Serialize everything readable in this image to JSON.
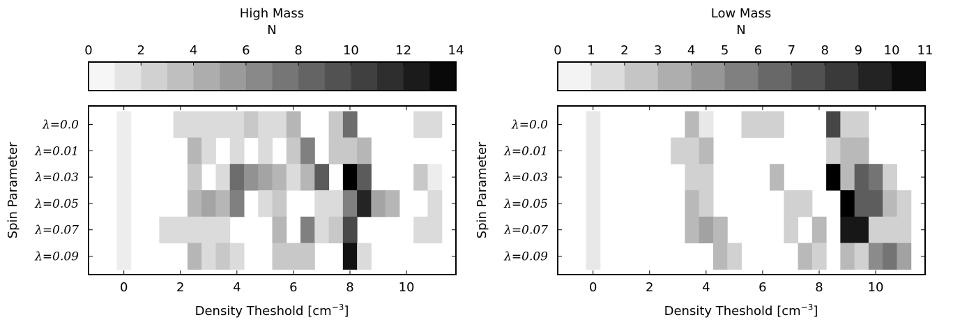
{
  "chart_data": [
    {
      "type": "heatmap",
      "title": "High Mass",
      "colorbar": {
        "label": "N",
        "min": 0,
        "max": 14,
        "levels": 14,
        "ticks": [
          0,
          2,
          4,
          6,
          8,
          10,
          12,
          14
        ],
        "tick_labels": [
          "0",
          "2",
          "4",
          "6",
          "8",
          "10",
          "12",
          "14"
        ]
      },
      "xlabel": "Density Theshold [cm",
      "xlabel_exponent": "−3",
      "xlabel_tail": "]",
      "ylabel": "Spin Parameter",
      "xlim": [
        -1.25,
        11.75
      ],
      "xticks": [
        0,
        2,
        4,
        6,
        8,
        10
      ],
      "xtick_labels": [
        "0",
        "2",
        "4",
        "6",
        "8",
        "10"
      ],
      "x": [
        0,
        0.5,
        1,
        1.5,
        2,
        2.5,
        3,
        3.5,
        4,
        4.5,
        5,
        5.5,
        6,
        6.5,
        7,
        7.5,
        8,
        8.5,
        9,
        9.5,
        10,
        10.5,
        11
      ],
      "y_labels": [
        "λ=0.0",
        "λ=0.01",
        "λ=0.03",
        "λ=0.05",
        "λ=0.07",
        "λ=0.09"
      ],
      "z": [
        [
          1,
          0,
          0,
          0,
          2,
          2,
          2,
          2,
          2,
          3,
          2,
          2,
          4,
          0,
          0,
          3,
          8,
          0,
          0,
          0,
          0,
          2,
          2
        ],
        [
          1,
          0,
          0,
          0,
          0,
          4,
          2,
          0,
          2,
          0,
          2,
          0,
          3,
          7,
          0,
          3,
          3,
          4,
          0,
          0,
          0,
          0,
          0
        ],
        [
          1,
          0,
          0,
          0,
          0,
          3,
          0,
          2,
          8,
          6,
          5,
          4,
          2,
          4,
          9,
          0,
          14,
          9,
          0,
          0,
          0,
          3,
          1
        ],
        [
          1,
          0,
          0,
          0,
          0,
          4,
          5,
          4,
          7,
          0,
          2,
          3,
          0,
          0,
          2,
          2,
          7,
          12,
          5,
          4,
          0,
          0,
          2
        ],
        [
          1,
          0,
          0,
          2,
          2,
          2,
          2,
          2,
          0,
          0,
          0,
          4,
          0,
          7,
          2,
          3,
          10,
          0,
          0,
          0,
          0,
          2,
          2
        ],
        [
          1,
          0,
          0,
          0,
          0,
          4,
          2,
          3,
          2,
          0,
          0,
          3,
          3,
          3,
          0,
          0,
          13,
          2,
          0,
          0,
          0,
          0,
          0
        ]
      ]
    },
    {
      "type": "heatmap",
      "title": "Low Mass",
      "colorbar": {
        "label": "N",
        "min": 0,
        "max": 11,
        "levels": 11,
        "ticks": [
          0,
          1,
          2,
          3,
          4,
          5,
          6,
          7,
          8,
          9,
          10,
          11
        ],
        "tick_labels": [
          "0",
          "1",
          "2",
          "3",
          "4",
          "5",
          "6",
          "7",
          "8",
          "9",
          "10",
          "11"
        ]
      },
      "xlabel": "Density Theshold [cm",
      "xlabel_exponent": "−3",
      "xlabel_tail": "]",
      "ylabel": "Spin Parameter",
      "xlim": [
        -1.25,
        11.75
      ],
      "xticks": [
        0,
        2,
        4,
        6,
        8,
        10
      ],
      "xtick_labels": [
        "0",
        "2",
        "4",
        "6",
        "8",
        "10"
      ],
      "x": [
        0,
        0.5,
        1,
        1.5,
        2,
        2.5,
        3,
        3.5,
        4,
        4.5,
        5,
        5.5,
        6,
        6.5,
        7,
        7.5,
        8,
        8.5,
        9,
        9.5,
        10,
        10.5,
        11
      ],
      "y_labels": [
        "λ=0.0",
        "λ=0.01",
        "λ=0.03",
        "λ=0.05",
        "λ=0.07",
        "λ=0.09"
      ],
      "z": [
        [
          1,
          0,
          0,
          0,
          0,
          0,
          0,
          3,
          1,
          0,
          0,
          2,
          2,
          2,
          0,
          0,
          0,
          8,
          2,
          2,
          0,
          0,
          0
        ],
        [
          1,
          0,
          0,
          0,
          0,
          0,
          2,
          2,
          3,
          0,
          0,
          0,
          0,
          0,
          0,
          0,
          0,
          2,
          3,
          3,
          0,
          0,
          0
        ],
        [
          1,
          0,
          0,
          0,
          0,
          0,
          0,
          2,
          2,
          0,
          0,
          0,
          0,
          3,
          0,
          0,
          0,
          11,
          3,
          7,
          6,
          2,
          0
        ],
        [
          1,
          0,
          0,
          0,
          0,
          0,
          0,
          3,
          2,
          0,
          0,
          0,
          0,
          0,
          2,
          2,
          0,
          0,
          11,
          7,
          7,
          3,
          2
        ],
        [
          1,
          0,
          0,
          0,
          0,
          0,
          0,
          3,
          4,
          3,
          0,
          0,
          0,
          0,
          2,
          0,
          3,
          0,
          10,
          10,
          2,
          2,
          2
        ],
        [
          1,
          0,
          0,
          0,
          0,
          0,
          0,
          0,
          0,
          3,
          2,
          0,
          0,
          0,
          0,
          3,
          2,
          0,
          3,
          2,
          5,
          6,
          4
        ]
      ]
    }
  ]
}
